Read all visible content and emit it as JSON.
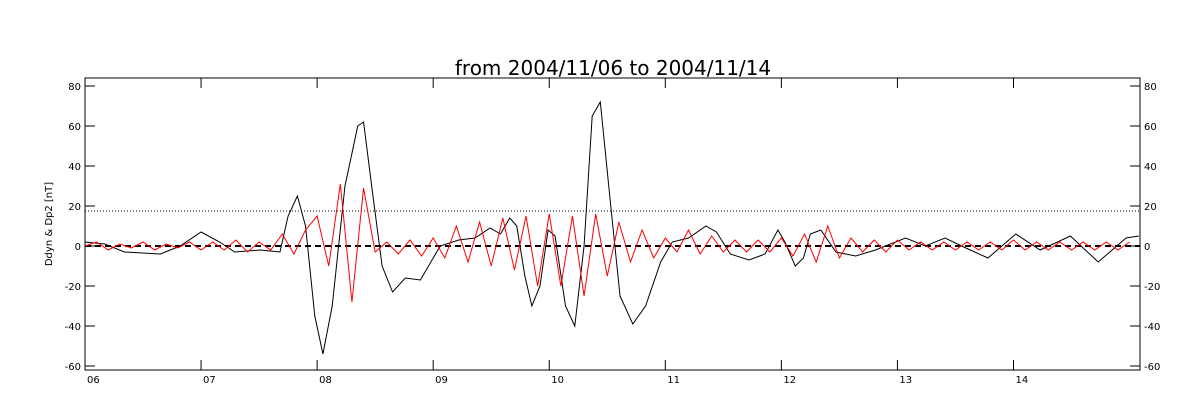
{
  "chart_data": {
    "type": "line",
    "title": "from 2004/11/06 to 2004/11/14",
    "ylabel": "Ddyn & Dp2 [nT]",
    "xlim": [
      6,
      15.09
    ],
    "xticks": [
      {
        "value": 6,
        "label": "06"
      },
      {
        "value": 7,
        "label": "07"
      },
      {
        "value": 8,
        "label": "08"
      },
      {
        "value": 9,
        "label": "09"
      },
      10,
      11,
      12,
      13,
      14
    ],
    "ylim": [
      -62,
      84
    ],
    "yticks": [
      -60,
      -40,
      -20,
      0,
      20,
      40,
      60,
      80
    ],
    "y2lim": [
      -62,
      84
    ],
    "y2ticks": [
      -60,
      -40,
      -20,
      0,
      20,
      40,
      60,
      80
    ],
    "reference_lines": [
      {
        "value": 17.5,
        "style": "dotted"
      },
      {
        "value": 0,
        "style": "dashed"
      }
    ],
    "series": [
      {
        "color": "#000000",
        "x": [
          6.0,
          6.17,
          6.34,
          6.65,
          6.82,
          7.0,
          7.16,
          7.29,
          7.51,
          7.68,
          7.75,
          7.83,
          7.9,
          7.98,
          8.05,
          8.13,
          8.24,
          8.35,
          8.4,
          8.47,
          8.56,
          8.65,
          8.76,
          8.89,
          9.06,
          9.22,
          9.36,
          9.49,
          9.58,
          9.66,
          9.72,
          9.79,
          9.85,
          9.92,
          9.99,
          10.05,
          10.14,
          10.22,
          10.3,
          10.37,
          10.44,
          10.53,
          10.61,
          10.72,
          10.83,
          10.96,
          11.06,
          11.2,
          11.35,
          11.44,
          11.56,
          11.72,
          11.86,
          11.97,
          12.03,
          12.12,
          12.19,
          12.25,
          12.34,
          12.47,
          12.64,
          12.81,
          13.07,
          13.24,
          13.41,
          13.59,
          13.78,
          14.02,
          14.23,
          14.49,
          14.73,
          14.97,
          15.08
        ],
        "values": [
          2,
          1,
          -3,
          -4,
          0,
          7,
          2,
          -3,
          -2,
          -3,
          15,
          25,
          10,
          -35,
          -54,
          -30,
          30,
          60,
          62,
          30,
          -10,
          -23,
          -16,
          -17,
          0,
          3,
          4,
          9,
          6,
          14,
          10,
          -15,
          -30,
          -20,
          8,
          5,
          -30,
          -40,
          0,
          65,
          72,
          20,
          -25,
          -39,
          -30,
          -8,
          2,
          4,
          10,
          7,
          -4,
          -7,
          -4,
          8,
          2,
          -10,
          -6,
          6,
          8,
          -3,
          -5,
          -2,
          4,
          0,
          4,
          -1,
          -6,
          6,
          -2,
          5,
          -8,
          4,
          5
        ]
      },
      {
        "color": "#ff0000",
        "x": [
          6.0,
          6.1,
          6.2,
          6.3,
          6.4,
          6.5,
          6.6,
          6.7,
          6.8,
          6.9,
          7.0,
          7.1,
          7.2,
          7.3,
          7.4,
          7.5,
          7.6,
          7.7,
          7.8,
          7.9,
          8.0,
          8.1,
          8.2,
          8.3,
          8.4,
          8.5,
          8.6,
          8.7,
          8.8,
          8.9,
          9.0,
          9.1,
          9.2,
          9.3,
          9.4,
          9.5,
          9.6,
          9.7,
          9.8,
          9.9,
          10.0,
          10.1,
          10.2,
          10.3,
          10.4,
          10.5,
          10.6,
          10.7,
          10.8,
          10.9,
          11.0,
          11.1,
          11.2,
          11.3,
          11.4,
          11.5,
          11.6,
          11.7,
          11.8,
          11.9,
          12.0,
          12.1,
          12.2,
          12.3,
          12.4,
          12.5,
          12.6,
          12.7,
          12.8,
          12.9,
          13.0,
          13.1,
          13.2,
          13.3,
          13.4,
          13.5,
          13.6,
          13.7,
          13.8,
          13.9,
          14.0,
          14.1,
          14.2,
          14.3,
          14.4,
          14.5,
          14.6,
          14.7,
          14.8,
          14.9,
          15.0
        ],
        "values": [
          0,
          2,
          -2,
          1,
          -1,
          2,
          -2,
          1,
          -1,
          2,
          -2,
          2,
          -2,
          3,
          -3,
          2,
          -2,
          6,
          -4,
          8,
          15,
          -10,
          31,
          -28,
          29,
          -3,
          2,
          -4,
          3,
          -5,
          4,
          -6,
          10,
          -8,
          12,
          -10,
          14,
          -12,
          15,
          -20,
          16,
          -20,
          15,
          -25,
          16,
          -15,
          12,
          -8,
          8,
          -6,
          4,
          -3,
          8,
          -4,
          5,
          -3,
          3,
          -3,
          3,
          -3,
          4,
          -5,
          6,
          -8,
          10,
          -6,
          4,
          -3,
          3,
          -3,
          3,
          -2,
          2,
          -2,
          2,
          -2,
          2,
          -2,
          2,
          -2,
          3,
          -2,
          2,
          -2,
          2,
          -2,
          2,
          -2,
          2,
          -2,
          2
        ]
      }
    ]
  }
}
